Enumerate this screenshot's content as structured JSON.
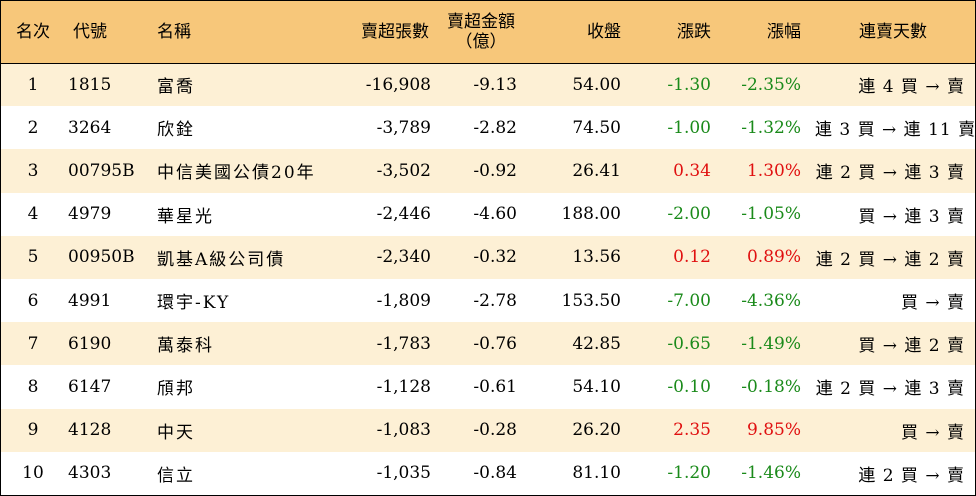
{
  "headers": {
    "rank": "名次",
    "code": "代號",
    "name": "名稱",
    "net_sell_lots": "賣超張數",
    "net_sell_amount_l1": "賣超金額",
    "net_sell_amount_l2": "（億）",
    "close": "收盤",
    "change": "漲跌",
    "change_pct": "漲幅",
    "streak": "連賣天數"
  },
  "colors": {
    "header_bg": "#f7c77a",
    "stripe_bg": "#fdf0d5",
    "down": "#1a8a1a",
    "up": "#e01010"
  },
  "rows": [
    {
      "rank": "1",
      "code": "1815",
      "name": "富喬",
      "lots": "-16,908",
      "amount": "-9.13",
      "close": "54.00",
      "change": "-1.30",
      "pct": "-2.35%",
      "streak": "連 4 買 → 賣",
      "dir": "neg"
    },
    {
      "rank": "2",
      "code": "3264",
      "name": "欣銓",
      "lots": "-3,789",
      "amount": "-2.82",
      "close": "74.50",
      "change": "-1.00",
      "pct": "-1.32%",
      "streak": "連 3 買 → 連 11 賣",
      "dir": "neg"
    },
    {
      "rank": "3",
      "code": "00795B",
      "name": "中信美國公債20年",
      "lots": "-3,502",
      "amount": "-0.92",
      "close": "26.41",
      "change": "0.34",
      "pct": "1.30%",
      "streak": "連 2 買 → 連 3 賣",
      "dir": "pos"
    },
    {
      "rank": "4",
      "code": "4979",
      "name": "華星光",
      "lots": "-2,446",
      "amount": "-4.60",
      "close": "188.00",
      "change": "-2.00",
      "pct": "-1.05%",
      "streak": "買 → 連 3 賣",
      "dir": "neg"
    },
    {
      "rank": "5",
      "code": "00950B",
      "name": "凱基A級公司債",
      "lots": "-2,340",
      "amount": "-0.32",
      "close": "13.56",
      "change": "0.12",
      "pct": "0.89%",
      "streak": "連 2 買 → 連 2 賣",
      "dir": "pos"
    },
    {
      "rank": "6",
      "code": "4991",
      "name": "環宇-KY",
      "lots": "-1,809",
      "amount": "-2.78",
      "close": "153.50",
      "change": "-7.00",
      "pct": "-4.36%",
      "streak": "買 → 賣",
      "dir": "neg"
    },
    {
      "rank": "7",
      "code": "6190",
      "name": "萬泰科",
      "lots": "-1,783",
      "amount": "-0.76",
      "close": "42.85",
      "change": "-0.65",
      "pct": "-1.49%",
      "streak": "買 → 連 2 賣",
      "dir": "neg"
    },
    {
      "rank": "8",
      "code": "6147",
      "name": "頎邦",
      "lots": "-1,128",
      "amount": "-0.61",
      "close": "54.10",
      "change": "-0.10",
      "pct": "-0.18%",
      "streak": "連 2 買 → 連 3 賣",
      "dir": "neg"
    },
    {
      "rank": "9",
      "code": "4128",
      "name": "中天",
      "lots": "-1,083",
      "amount": "-0.28",
      "close": "26.20",
      "change": "2.35",
      "pct": "9.85%",
      "streak": "買 → 賣",
      "dir": "pos"
    },
    {
      "rank": "10",
      "code": "4303",
      "name": "信立",
      "lots": "-1,035",
      "amount": "-0.84",
      "close": "81.10",
      "change": "-1.20",
      "pct": "-1.46%",
      "streak": "連 2 買 → 賣",
      "dir": "neg"
    }
  ]
}
